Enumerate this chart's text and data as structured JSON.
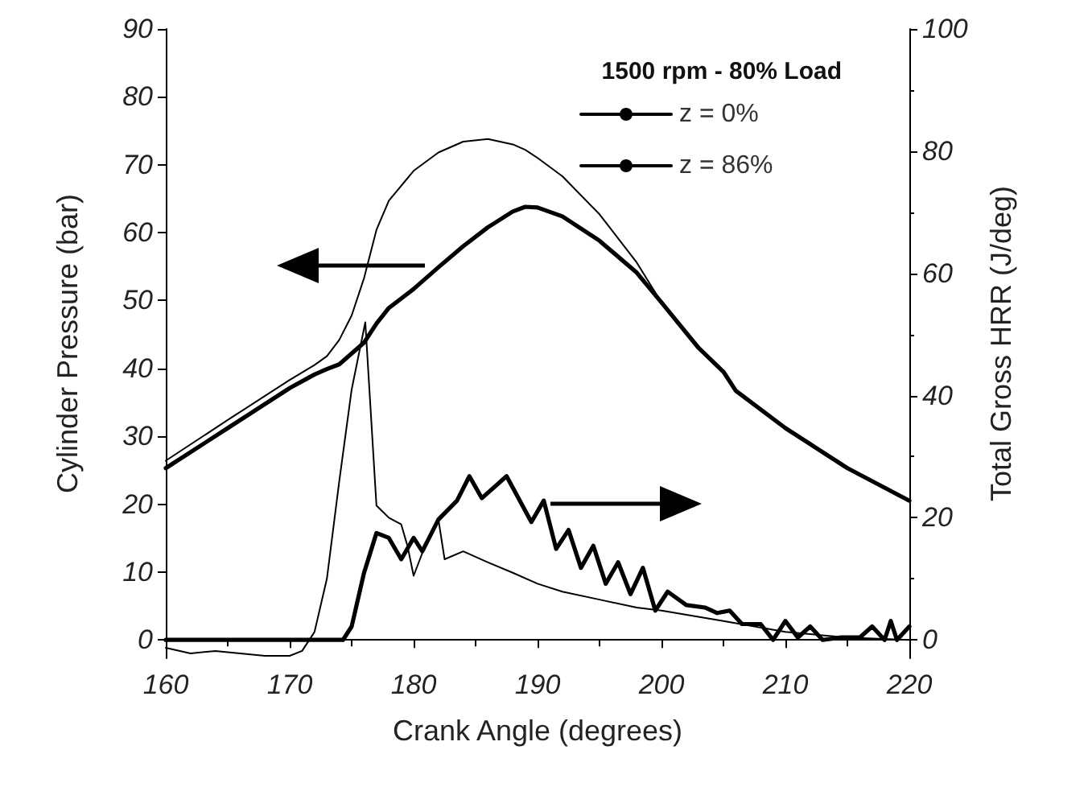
{
  "chart_data": {
    "type": "line",
    "xlabel": "Crank Angle (degrees)",
    "ylabel": "Cylinder Pressure (bar)",
    "y2label": "Total Gross HRR (J/deg)",
    "legend_title": "1500 rpm - 80% Load",
    "legend": "top right",
    "marker": "none",
    "line_style": "solid",
    "grid": false,
    "xlim": [
      160,
      220
    ],
    "xticks": [
      160,
      170,
      180,
      190,
      200,
      210,
      220
    ],
    "ylim": [
      -2.7,
      90
    ],
    "yticks": [
      0,
      10,
      20,
      30,
      40,
      50,
      60,
      70,
      80,
      90
    ],
    "y2lim": [
      -3,
      100
    ],
    "y2ticks": [
      0,
      20,
      40,
      60,
      80,
      100
    ],
    "series": [
      {
        "name": "z = 0%",
        "color": "#000000",
        "x": [
          160,
          165,
          170,
          172,
          173,
          174,
          175,
          176,
          177,
          178,
          180,
          182,
          184,
          186,
          188,
          189,
          190,
          192,
          195,
          198,
          200,
          203,
          205,
          206,
          210,
          215,
          220
        ],
        "values": [
          26.4,
          32.4,
          38.3,
          40.5,
          41.8,
          44.2,
          47.8,
          53.3,
          60.4,
          64.7,
          69.1,
          71.8,
          73.4,
          73.8,
          73,
          72.2,
          71,
          68.3,
          62.7,
          55.6,
          49.7,
          43,
          39.5,
          36.7,
          31.2,
          25.3,
          20.5
        ]
      },
      {
        "name": "z = 86%",
        "color": "#000000",
        "x": [
          160,
          165,
          170,
          172,
          173,
          174,
          175,
          176,
          177,
          178,
          180,
          182,
          184,
          186,
          188,
          189,
          190,
          192,
          195,
          198,
          200,
          203,
          205,
          206,
          210,
          215,
          220
        ],
        "values": [
          25.3,
          31.2,
          37.1,
          39.1,
          39.9,
          40.6,
          42.2,
          43.8,
          46.6,
          48.9,
          51.7,
          54.9,
          58,
          60.8,
          63.1,
          63.8,
          63.7,
          62.4,
          58.8,
          54.1,
          49.7,
          43,
          39.5,
          36.7,
          31.2,
          25.3,
          20.5
        ]
      },
      {
        "color": "#000000",
        "axis": "y2",
        "x": [
          160,
          162,
          164,
          166,
          168,
          170,
          171,
          172,
          173,
          174,
          175,
          176.1,
          177,
          178,
          179,
          179.5,
          180,
          181,
          182,
          182.5,
          184,
          186,
          188,
          190,
          192,
          195,
          198,
          200,
          205,
          210,
          215,
          220
        ],
        "values": [
          -1.3,
          -2.2,
          -1.8,
          -2.2,
          -2.6,
          -2.6,
          -1.8,
          1.3,
          10,
          26,
          41,
          52,
          22,
          20,
          18.9,
          15.4,
          10.5,
          15.8,
          19.7,
          13.2,
          14.5,
          12.7,
          11,
          9.2,
          7.9,
          6.6,
          5.3,
          4.8,
          3.1,
          1.3,
          0.4,
          0
        ]
      },
      {
        "color": "#000000",
        "axis": "y2",
        "x": [
          160,
          170,
          174.3,
          175,
          176,
          177,
          178,
          179,
          180,
          180.7,
          182,
          183.5,
          184.5,
          185.5,
          187.5,
          189.5,
          190.5,
          191.5,
          192.5,
          193.5,
          194.5,
          195.5,
          196.5,
          197.5,
          198.5,
          199.5,
          200.5,
          202,
          203.5,
          204.5,
          205.5,
          206.5,
          208,
          209,
          210,
          211,
          212,
          213,
          214.5,
          216,
          217,
          218,
          218.5,
          219,
          220
        ],
        "values": [
          0,
          0,
          0,
          2.2,
          11,
          17.5,
          16.7,
          13.2,
          16.7,
          14.5,
          19.7,
          22.8,
          26.8,
          23.2,
          26.8,
          19.3,
          22.8,
          14.9,
          18,
          11.8,
          15.4,
          9.2,
          12.7,
          7.5,
          11.8,
          4.8,
          7.9,
          5.7,
          5.3,
          4.4,
          4.8,
          2.6,
          2.6,
          0,
          3.1,
          0.4,
          2.2,
          0,
          0.4,
          0.4,
          2.2,
          0,
          3.1,
          0,
          2.2
        ]
      }
    ]
  }
}
